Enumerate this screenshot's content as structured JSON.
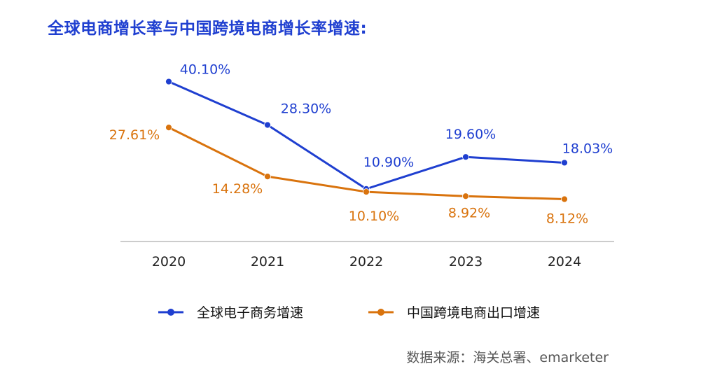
{
  "title": "全球电商增长率与中国跨境电商增长率增速:",
  "source": "数据来源：海关总署、emarketer",
  "colors": {
    "title": "#1f3fd0",
    "series1": "#1f3fd0",
    "series2": "#d9730d",
    "axis": "#bbbbbb"
  },
  "chart_data": {
    "type": "line",
    "title": "全球电商增长率与中国跨境电商增长率增速:",
    "xlabel": "",
    "ylabel": "",
    "ylim": [
      5,
      45
    ],
    "grid": false,
    "legend_position": "bottom",
    "categories": [
      "2020",
      "2021",
      "2022",
      "2023",
      "2024"
    ],
    "series": [
      {
        "name": "全球电子商务增速",
        "color": "#1f3fd0",
        "values": [
          40.1,
          28.3,
          10.9,
          19.6,
          18.03
        ],
        "labels": [
          "40.10%",
          "28.30%",
          "10.90%",
          "19.60%",
          "18.03%"
        ]
      },
      {
        "name": "中国跨境电商出口增速",
        "color": "#d9730d",
        "values": [
          27.61,
          14.28,
          10.1,
          8.92,
          8.12
        ],
        "labels": [
          "27.61%",
          "14.28%",
          "10.10%",
          "8.92%",
          "8.12%"
        ]
      }
    ]
  }
}
